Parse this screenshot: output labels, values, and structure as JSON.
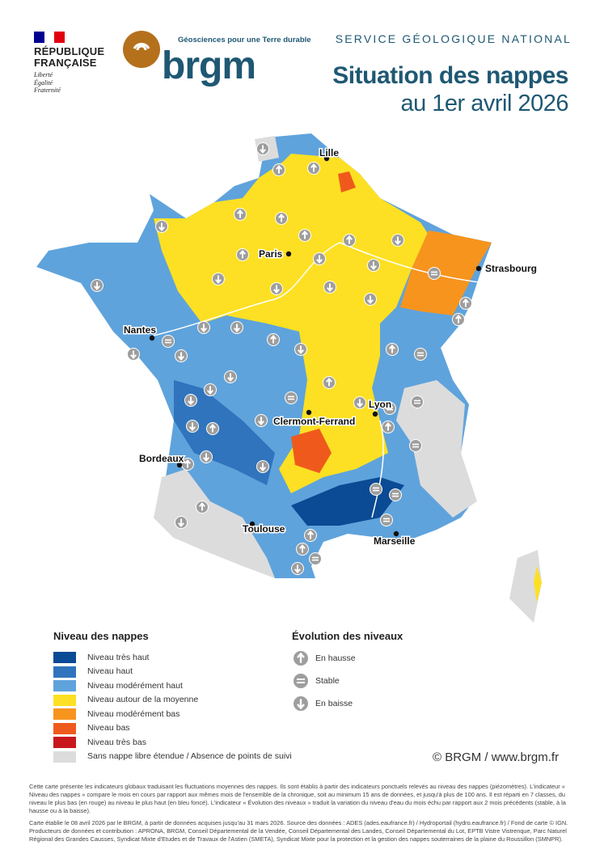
{
  "header": {
    "rf": {
      "name_line1": "RÉPUBLIQUE",
      "name_line2": "FRANÇAISE",
      "motto": [
        "Liberté",
        "Égalité",
        "Fraternité"
      ],
      "flag_colors": [
        "#000091",
        "#ffffff",
        "#e1000f"
      ]
    },
    "brgm": {
      "wordmark": "brgm",
      "tagline": "Géosciences pour une Terre durable",
      "logo_color": "#b5701c",
      "brand_color": "#1f5873"
    },
    "service": "SERVICE GÉOLOGIQUE NATIONAL",
    "title": "Situation des nappes",
    "subtitle": "au 1er avril 2026"
  },
  "map": {
    "cities": [
      "Lille",
      "Paris",
      "Strasbourg",
      "Nantes",
      "Lyon",
      "Clermont-Ferrand",
      "Bordeaux",
      "Toulouse",
      "Marseille"
    ],
    "indicators": [
      "down",
      "up",
      "up",
      "up",
      "up",
      "down",
      "up",
      "up",
      "down",
      "down",
      "up",
      "down",
      "down",
      "stable",
      "down",
      "down",
      "down",
      "down",
      "up",
      "up",
      "stable",
      "down",
      "down",
      "down",
      "up",
      "down",
      "up",
      "stable",
      "down",
      "down",
      "down",
      "up",
      "stable",
      "down",
      "down",
      "stable",
      "down",
      "stable",
      "up",
      "up",
      "down",
      "up",
      "stable",
      "down",
      "down",
      "stable",
      "up",
      "stable",
      "stable",
      "down",
      "up",
      "up",
      "stable",
      "down"
    ]
  },
  "legend": {
    "title": "Niveau des nappes",
    "items": [
      {
        "label": "Niveau très haut",
        "color": "#0b4a94"
      },
      {
        "label": "Niveau haut",
        "color": "#2f74bd"
      },
      {
        "label": "Niveau modérément haut",
        "color": "#5fa3dc"
      },
      {
        "label": "Niveau autour de la moyenne",
        "color": "#fde023"
      },
      {
        "label": "Niveau modérément bas",
        "color": "#f7941d"
      },
      {
        "label": "Niveau bas",
        "color": "#ef5a1c"
      },
      {
        "label": "Niveau très bas",
        "color": "#c8161d"
      },
      {
        "label": "Sans nappe libre étendue / Absence de points de suivi",
        "color": "#dcdcdc"
      }
    ]
  },
  "evolution": {
    "title": "Évolution des niveaux",
    "items": [
      {
        "icon": "arrow-up",
        "label": "En hausse"
      },
      {
        "icon": "equals",
        "label": "Stable"
      },
      {
        "icon": "arrow-down",
        "label": "En baisse"
      }
    ]
  },
  "credit": "© BRGM / www.brgm.fr",
  "footer": {
    "p1": "Cette carte présente les indicateurs globaux traduisant les fluctuations moyennes des nappes. Ils sont établis à partir des indicateurs ponctuels relevés au niveau des nappes (piézomètres). L'indicateur « Niveau des nappes » compare le mois en cours par rapport aux mêmes mois de l'ensemble de la chronique, soit au minimum 15 ans de données, et jusqu'à plus de 100 ans. Il est réparti en 7 classes, du niveau le plus bas (en rouge) au niveau le plus haut (en bleu foncé). L'indicateur « Évolution des niveaux » traduit la variation du niveau d'eau du mois échu par rapport aux 2 mois précédents (stable, à la hausse ou à la baisse).",
    "p2": "Carte établie le 08 avril 2026 par le BRGM, à partir de données acquises jusqu'au 31 mars 2026. Source des données : ADES (ades.eaufrance.fr) / Hydroportail (hydro.eaufrance.fr) / Fond de carte © IGN. Producteurs de données et contribution : APRONA, BRGM, Conseil Départemental de la Vendée, Conseil Départemental des Landes, Conseil Départemental du Lot, EPTB Vistre Vistrenque, Parc Naturel Régional des Grandes Causses, Syndicat Mixte d'Etudes et de Travaux de l'Astien (SMETA), Syndicat Mixte pour la protection et la gestion des nappes souterraines de la plaine du Roussillon (SMNPR)."
  }
}
